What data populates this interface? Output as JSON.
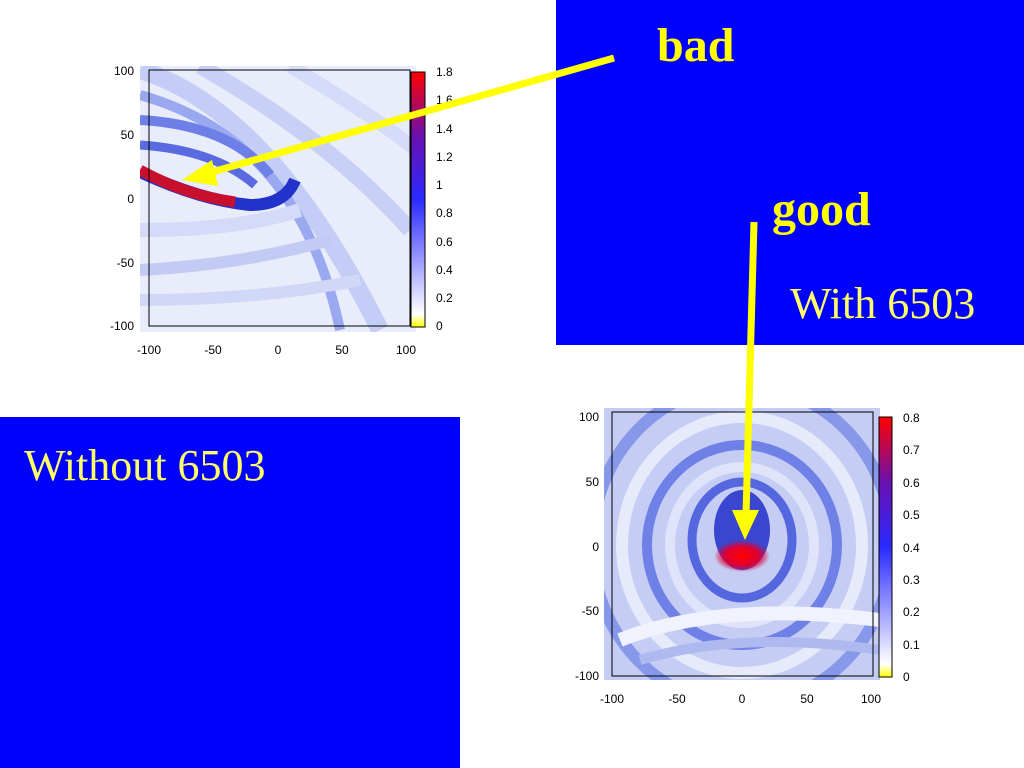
{
  "labels": {
    "bad": "bad",
    "good": "good",
    "with_caption": "With 6503",
    "without_caption": "Without 6503"
  },
  "colors": {
    "panel_bg": "#0000ff",
    "label_text": "#ffff00",
    "arrow": "#ffff00"
  },
  "chart_data": [
    {
      "type": "heatmap",
      "x_ticks": [
        "-100",
        "-50",
        "0",
        "50",
        "100"
      ],
      "y_ticks": [
        "100",
        "50",
        "0",
        "-50",
        "-100"
      ],
      "xlim": [
        -100,
        100
      ],
      "ylim": [
        -100,
        100
      ],
      "colorbar": {
        "range": [
          0,
          1.8
        ],
        "ticks": [
          "1.8",
          "1.6",
          "1.4",
          "1.2",
          "1",
          "0.8",
          "0.6",
          "0.4",
          "0.2",
          "0"
        ],
        "colors": [
          "#ffff00",
          "#ffffff",
          "#0000ff",
          "#ff0000"
        ]
      },
      "peak": {
        "x": -85,
        "y": 5,
        "value": 1.8
      }
    },
    {
      "type": "heatmap",
      "x_ticks": [
        "-100",
        "-50",
        "0",
        "50",
        "100"
      ],
      "y_ticks": [
        "100",
        "50",
        "0",
        "-50",
        "-100"
      ],
      "xlim": [
        -100,
        100
      ],
      "ylim": [
        -100,
        100
      ],
      "colorbar": {
        "range": [
          0,
          0.8
        ],
        "ticks": [
          "0.8",
          "0.7",
          "0.6",
          "0.5",
          "0.4",
          "0.3",
          "0.2",
          "0.1",
          "0"
        ],
        "colors": [
          "#ffff00",
          "#ffffff",
          "#0000ff",
          "#ff0000"
        ]
      },
      "peak": {
        "x": 3,
        "y": -8,
        "value": 0.8
      }
    }
  ]
}
